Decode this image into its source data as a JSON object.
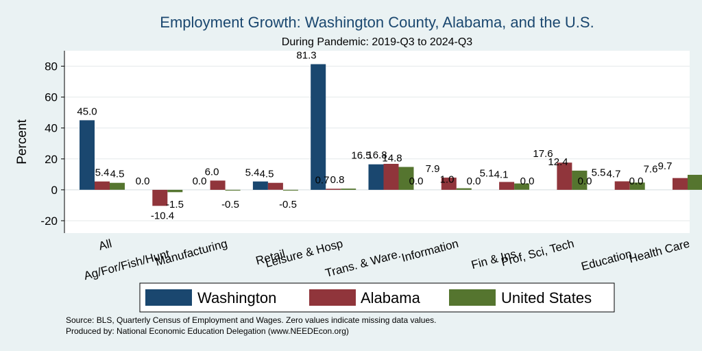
{
  "chart_data": {
    "type": "bar",
    "title": "Employment Growth: Washington County, Alabama, and the U.S.",
    "subtitle": "During Pandemic: 2019-Q3 to 2024-Q3",
    "ylabel": "Percent",
    "xlabel": "",
    "ylim": [
      -28,
      90
    ],
    "yticks": [
      -20,
      0,
      20,
      40,
      60,
      80
    ],
    "grid": true,
    "legend_position": "bottom",
    "categories": [
      "All",
      "Ag/For/Fish/Hunt",
      "Manufacturing",
      "Retail",
      "Leisure & Hosp",
      "Trans. & Ware.",
      "Information",
      "Fin & Ins",
      "Prof, Sci, Tech",
      "Education",
      "Health Care"
    ],
    "series": [
      {
        "name": "Washington",
        "color": "#1a476f",
        "values": [
          45.0,
          0.0,
          0.0,
          5.4,
          81.3,
          16.5,
          0.0,
          0.0,
          0.0,
          0.0,
          0.0
        ],
        "labels": [
          "45.0",
          "0.0",
          "0.0",
          "5.4",
          "81.3",
          "16.5",
          "0.0",
          "0.0",
          "0.0",
          "0.0",
          "0.0"
        ]
      },
      {
        "name": "Alabama",
        "color": "#90353b",
        "values": [
          5.4,
          -10.4,
          6.0,
          4.5,
          0.7,
          16.8,
          7.9,
          5.1,
          17.6,
          5.5,
          7.6
        ],
        "labels": [
          "5.4",
          "-10.4",
          "6.0",
          "4.5",
          "0.7",
          "16.8",
          "7.9",
          "5.1",
          "17.6",
          "5.5",
          "7.6"
        ]
      },
      {
        "name": "United States",
        "color": "#55752f",
        "values": [
          4.5,
          -1.5,
          -0.5,
          -0.5,
          0.8,
          14.8,
          1.0,
          4.1,
          12.4,
          4.7,
          9.7
        ],
        "labels": [
          "4.5",
          "-1.5",
          "-0.5",
          "-0.5",
          "0.8",
          "14.8",
          "1.0",
          "4.1",
          "12.4",
          "4.7",
          "9.7"
        ]
      }
    ]
  },
  "notes": {
    "source": "Source: BLS, Quarterly Census of Employment and Wages. Zero values indicate missing data values.",
    "produced": "Produced by: National Economic Education Delegation (www.NEEDEcon.org)"
  }
}
